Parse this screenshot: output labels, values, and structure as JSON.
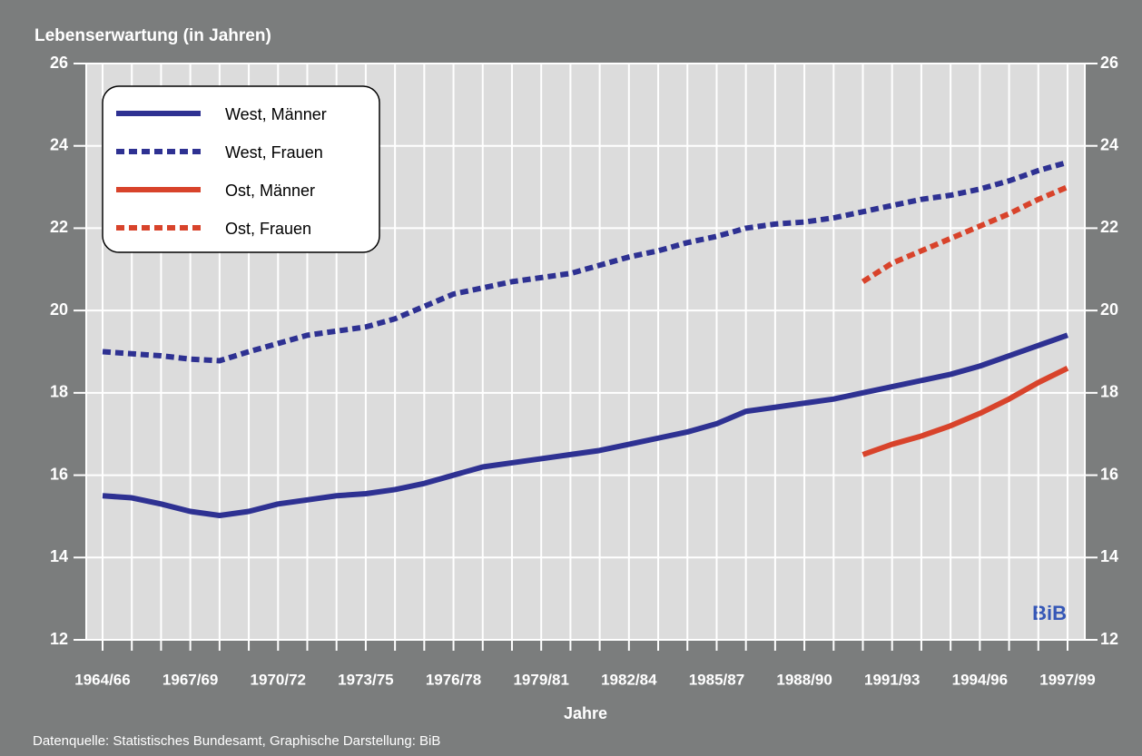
{
  "chart_data": {
    "type": "line",
    "y_label": "Lebenserwartung (in Jahren)",
    "x_label": "Jahre",
    "source": "Datenquelle: Statistisches Bundesamt, Graphische Darstellung: BiB",
    "logo": "BiB",
    "categories": [
      "1964/66",
      null,
      null,
      "1967/69",
      null,
      null,
      "1970/72",
      null,
      null,
      "1973/75",
      null,
      null,
      "1976/78",
      null,
      null,
      "1979/81",
      null,
      null,
      "1982/84",
      null,
      null,
      "1985/87",
      null,
      null,
      "1988/90",
      null,
      null,
      "1991/93",
      null,
      null,
      "1994/96",
      null,
      null,
      "1997/99"
    ],
    "series": [
      {
        "name": "West, Männer",
        "color": "#2e3192",
        "linestyle": "solid",
        "values": [
          15.5,
          15.45,
          15.3,
          15.12,
          15.02,
          15.12,
          15.3,
          15.4,
          15.5,
          15.55,
          15.65,
          15.8,
          16.0,
          16.2,
          16.3,
          16.4,
          16.5,
          16.6,
          16.75,
          16.9,
          17.05,
          17.25,
          17.55,
          17.65,
          17.75,
          17.85,
          18.0,
          18.15,
          18.3,
          18.45,
          18.65,
          18.9,
          19.15,
          19.4
        ]
      },
      {
        "name": "West, Frauen",
        "color": "#2e3192",
        "linestyle": "dotted",
        "values": [
          19.0,
          18.95,
          18.9,
          18.82,
          18.78,
          19.0,
          19.2,
          19.4,
          19.5,
          19.6,
          19.8,
          20.1,
          20.4,
          20.55,
          20.7,
          20.8,
          20.9,
          21.1,
          21.3,
          21.45,
          21.65,
          21.8,
          22.0,
          22.1,
          22.15,
          22.25,
          22.4,
          22.55,
          22.7,
          22.8,
          22.95,
          23.15,
          23.4,
          23.6
        ]
      },
      {
        "name": "Ost, Männer",
        "color": "#d8432b",
        "linestyle": "solid",
        "values": [
          null,
          null,
          null,
          null,
          null,
          null,
          null,
          null,
          null,
          null,
          null,
          null,
          null,
          null,
          null,
          null,
          null,
          null,
          null,
          null,
          null,
          null,
          null,
          null,
          null,
          null,
          16.5,
          16.75,
          16.95,
          17.2,
          17.5,
          17.85,
          18.25,
          18.6
        ]
      },
      {
        "name": "Ost, Frauen",
        "color": "#d8432b",
        "linestyle": "dotted",
        "values": [
          null,
          null,
          null,
          null,
          null,
          null,
          null,
          null,
          null,
          null,
          null,
          null,
          null,
          null,
          null,
          null,
          null,
          null,
          null,
          null,
          null,
          null,
          null,
          null,
          null,
          null,
          20.7,
          21.15,
          21.45,
          21.75,
          22.05,
          22.35,
          22.7,
          23.0
        ]
      }
    ],
    "ylim": [
      12,
      26
    ],
    "yticks": [
      12,
      14,
      16,
      18,
      20,
      22,
      24,
      26
    ],
    "y2lim": [
      12,
      26
    ],
    "y2ticks": [
      12,
      14,
      16,
      18,
      20,
      22,
      24,
      26
    ],
    "grid": true,
    "legend": "upper left"
  }
}
